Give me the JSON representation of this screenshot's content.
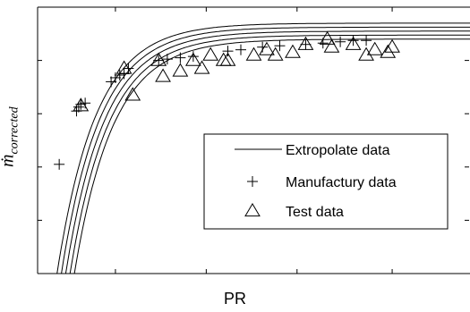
{
  "chart_data": {
    "type": "line",
    "xlabel": "PR",
    "ylabel_main": "ṁ",
    "ylabel_sub": "corrected",
    "legend_position": "center-right",
    "grid": false,
    "x_ticks_labelled": false,
    "y_ticks_labelled": false,
    "series": [
      {
        "name": "Extropolate data",
        "style": "solid line",
        "curves": [
          {
            "asymptote": 0.94,
            "x0": 0.045
          },
          {
            "asymptote": 0.925,
            "x0": 0.055
          },
          {
            "asymptote": 0.91,
            "x0": 0.065
          },
          {
            "asymptote": 0.895,
            "x0": 0.075
          },
          {
            "asymptote": 0.88,
            "x0": 0.085
          }
        ]
      },
      {
        "name": "Manufactury data",
        "marker": "plus",
        "points": [
          [
            0.05,
            0.41
          ],
          [
            0.09,
            0.61
          ],
          [
            0.095,
            0.625
          ],
          [
            0.1,
            0.635
          ],
          [
            0.11,
            0.64
          ],
          [
            0.17,
            0.72
          ],
          [
            0.18,
            0.735
          ],
          [
            0.19,
            0.745
          ],
          [
            0.2,
            0.75
          ],
          [
            0.21,
            0.77
          ],
          [
            0.28,
            0.8
          ],
          [
            0.3,
            0.805
          ],
          [
            0.33,
            0.81
          ],
          [
            0.36,
            0.815
          ],
          [
            0.44,
            0.835
          ],
          [
            0.47,
            0.84
          ],
          [
            0.52,
            0.85
          ],
          [
            0.56,
            0.855
          ],
          [
            0.62,
            0.86
          ],
          [
            0.66,
            0.865
          ],
          [
            0.7,
            0.87
          ],
          [
            0.73,
            0.875
          ],
          [
            0.76,
            0.875
          ]
        ]
      },
      {
        "name": "Test data",
        "marker": "triangle",
        "points": [
          [
            0.1,
            0.63
          ],
          [
            0.2,
            0.77
          ],
          [
            0.22,
            0.67
          ],
          [
            0.28,
            0.8
          ],
          [
            0.29,
            0.74
          ],
          [
            0.33,
            0.76
          ],
          [
            0.36,
            0.8
          ],
          [
            0.38,
            0.77
          ],
          [
            0.4,
            0.82
          ],
          [
            0.43,
            0.8
          ],
          [
            0.44,
            0.8
          ],
          [
            0.5,
            0.82
          ],
          [
            0.53,
            0.84
          ],
          [
            0.55,
            0.82
          ],
          [
            0.59,
            0.83
          ],
          [
            0.62,
            0.86
          ],
          [
            0.67,
            0.88
          ],
          [
            0.68,
            0.85
          ],
          [
            0.73,
            0.86
          ],
          [
            0.76,
            0.82
          ],
          [
            0.78,
            0.84
          ],
          [
            0.81,
            0.83
          ],
          [
            0.82,
            0.85
          ]
        ]
      }
    ],
    "xlim": [
      0,
      1
    ],
    "ylim": [
      0,
      1
    ]
  }
}
